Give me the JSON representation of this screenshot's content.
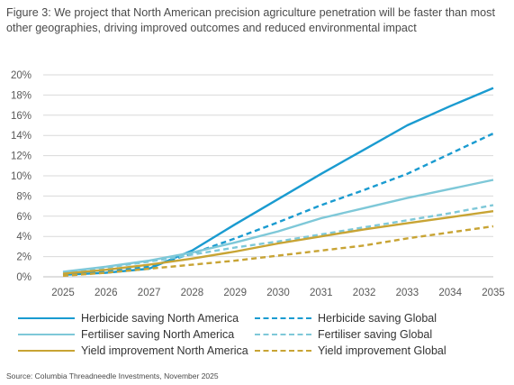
{
  "title": "Figure 3: We project that North American precision agriculture penetration will be faster than most other geographies, driving improved outcomes and reduced environmental impact",
  "source": "Source: Columbia Threadneedle Investments, November 2025",
  "chart_data": {
    "type": "line",
    "x": [
      "2025",
      "2026",
      "2027",
      "2028",
      "2029",
      "2030",
      "2031",
      "2032",
      "2033",
      "2034",
      "2035"
    ],
    "ylim": [
      0,
      20
    ],
    "yticks": [
      "0%",
      "2%",
      "4%",
      "6%",
      "8%",
      "10%",
      "12%",
      "14%",
      "16%",
      "18%",
      "20%"
    ],
    "grid": "horizontal",
    "legend_position": "bottom",
    "series": [
      {
        "name": "Herbicide saving North America",
        "color": "#1a9bd0",
        "dash": "solid",
        "values": [
          0.2,
          0.4,
          0.8,
          2.6,
          5.2,
          7.7,
          10.2,
          12.6,
          15.0,
          16.9,
          18.7
        ]
      },
      {
        "name": "Herbicide saving Global",
        "color": "#1a9bd0",
        "dash": "dashed",
        "values": [
          0.2,
          0.5,
          1.0,
          2.3,
          3.8,
          5.4,
          7.1,
          8.6,
          10.2,
          12.2,
          14.2
        ]
      },
      {
        "name": "Fertiliser saving North America",
        "color": "#7ec8d8",
        "dash": "solid",
        "values": [
          0.5,
          1.0,
          1.6,
          2.4,
          3.4,
          4.5,
          5.8,
          6.8,
          7.8,
          8.7,
          9.6
        ]
      },
      {
        "name": "Fertiliser saving Global",
        "color": "#7ec8d8",
        "dash": "dashed",
        "values": [
          0.4,
          0.9,
          1.5,
          2.2,
          2.9,
          3.5,
          4.2,
          4.9,
          5.6,
          6.3,
          7.1
        ]
      },
      {
        "name": "Yield improvement North America",
        "color": "#c8a434",
        "dash": "solid",
        "values": [
          0.3,
          0.7,
          1.2,
          1.8,
          2.5,
          3.3,
          4.0,
          4.7,
          5.3,
          5.9,
          6.5
        ]
      },
      {
        "name": "Yield improvement Global",
        "color": "#c8a434",
        "dash": "dashed",
        "values": [
          0.1,
          0.4,
          0.8,
          1.2,
          1.6,
          2.1,
          2.6,
          3.1,
          3.8,
          4.4,
          5.0
        ]
      }
    ]
  }
}
